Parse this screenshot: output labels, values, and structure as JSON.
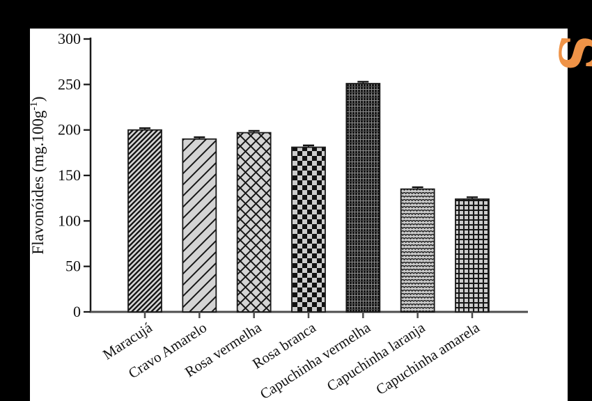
{
  "frame": {
    "bg": "#000000",
    "panel_bg": "#ffffff"
  },
  "watermark": {
    "glyph": "S",
    "color": "#EF9347"
  },
  "chart_data": {
    "type": "bar",
    "title": "",
    "xlabel": "",
    "ylabel": "Flavonóides (mg.100g⁻¹)",
    "ylim": [
      0,
      300
    ],
    "yticks": [
      0,
      50,
      100,
      150,
      200,
      250,
      300
    ],
    "grid": false,
    "legend": "none",
    "categories": [
      "Maracujá",
      "Cravo Amarelo",
      "Rosa vermelha",
      "Rosa branca",
      "Capuchinha vermelha",
      "Capuchinha laranja",
      "Capuchinha amarela"
    ],
    "values": [
      200,
      190,
      197,
      181,
      251,
      135,
      124
    ],
    "errors": [
      2,
      2,
      2,
      2,
      2,
      2,
      2
    ],
    "patterns": [
      "diagonal-dense",
      "diagonal-wide",
      "diamond-crosshatch",
      "checkerboard",
      "dark-fine-grid",
      "waves",
      "open-grid"
    ],
    "bar_edge": "#1a1a1a",
    "axis_color_y": "#1a1a1a",
    "axis_color_x": "#4d4d4d",
    "text_color": "#101010"
  }
}
